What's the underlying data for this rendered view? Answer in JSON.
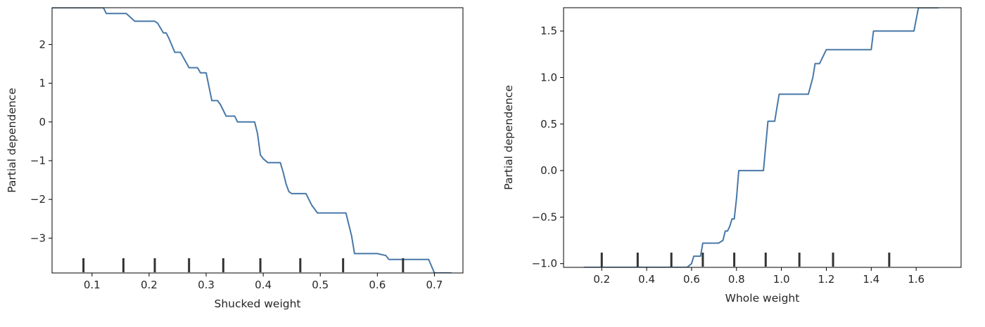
{
  "chart_data": [
    {
      "type": "line",
      "xlabel": "Shucked weight",
      "ylabel": "Partial dependence",
      "xlim": [
        0.03,
        0.75
      ],
      "ylim": [
        -3.9,
        2.95
      ],
      "xticks": [
        0.1,
        0.2,
        0.3,
        0.4,
        0.5,
        0.6,
        0.7
      ],
      "xtick_labels": [
        "0.1",
        "0.2",
        "0.3",
        "0.4",
        "0.5",
        "0.6",
        "0.7"
      ],
      "yticks": [
        2,
        1,
        0,
        -1,
        -2,
        -3
      ],
      "ytick_labels": [
        "2",
        "1",
        "0",
        "−1",
        "−2",
        "−3"
      ],
      "deciles": [
        0.085,
        0.155,
        0.21,
        0.27,
        0.33,
        0.395,
        0.465,
        0.54,
        0.645
      ],
      "line_color": "#4878a8",
      "decile_color": "#333333",
      "grid": false,
      "x": [
        0.03,
        0.12,
        0.125,
        0.14,
        0.16,
        0.175,
        0.21,
        0.215,
        0.225,
        0.23,
        0.235,
        0.245,
        0.255,
        0.27,
        0.285,
        0.29,
        0.3,
        0.31,
        0.32,
        0.325,
        0.335,
        0.35,
        0.355,
        0.385,
        0.39,
        0.395,
        0.4,
        0.408,
        0.43,
        0.435,
        0.44,
        0.445,
        0.45,
        0.475,
        0.485,
        0.495,
        0.5,
        0.545,
        0.555,
        0.56,
        0.6,
        0.615,
        0.62,
        0.645,
        0.69,
        0.7,
        0.73
      ],
      "y": [
        2.95,
        2.95,
        2.8,
        2.8,
        2.8,
        2.6,
        2.6,
        2.55,
        2.3,
        2.3,
        2.15,
        1.8,
        1.8,
        1.4,
        1.4,
        1.27,
        1.27,
        0.55,
        0.55,
        0.45,
        0.15,
        0.15,
        0.0,
        0.0,
        -0.3,
        -0.85,
        -0.95,
        -1.05,
        -1.05,
        -1.3,
        -1.6,
        -1.8,
        -1.85,
        -1.85,
        -2.15,
        -2.35,
        -2.35,
        -2.35,
        -2.95,
        -3.4,
        -3.4,
        -3.45,
        -3.55,
        -3.55,
        -3.55,
        -3.9,
        -3.9
      ]
    },
    {
      "type": "line",
      "xlabel": "Whole weight",
      "ylabel": "Partial dependence",
      "xlim": [
        0.03,
        1.8
      ],
      "ylim": [
        -1.04,
        1.75
      ],
      "xticks": [
        0.2,
        0.4,
        0.6,
        0.8,
        1.0,
        1.2,
        1.4,
        1.6
      ],
      "xtick_labels": [
        "0.2",
        "0.4",
        "0.6",
        "0.8",
        "1.0",
        "1.2",
        "1.4",
        "1.6"
      ],
      "yticks": [
        1.5,
        1.0,
        0.5,
        0.0,
        -0.5,
        -1.0
      ],
      "ytick_labels": [
        "1.5",
        "1.0",
        "0.5",
        "0.0",
        "−0.5",
        "−1.0"
      ],
      "deciles": [
        0.2,
        0.36,
        0.51,
        0.65,
        0.79,
        0.93,
        1.08,
        1.23,
        1.48
      ],
      "line_color": "#4878a8",
      "decile_color": "#333333",
      "grid": false,
      "x": [
        0.12,
        0.58,
        0.6,
        0.61,
        0.64,
        0.65,
        0.72,
        0.74,
        0.75,
        0.76,
        0.77,
        0.78,
        0.79,
        0.8,
        0.81,
        0.87,
        0.92,
        0.94,
        0.97,
        0.99,
        1.09,
        1.12,
        1.14,
        1.15,
        1.17,
        1.2,
        1.35,
        1.4,
        1.41,
        1.45,
        1.5,
        1.58,
        1.59,
        1.61,
        1.7
      ],
      "y": [
        -1.04,
        -1.04,
        -1.0,
        -0.92,
        -0.92,
        -0.78,
        -0.78,
        -0.75,
        -0.65,
        -0.65,
        -0.6,
        -0.52,
        -0.52,
        -0.3,
        0.0,
        0.0,
        0.0,
        0.53,
        0.53,
        0.82,
        0.82,
        0.82,
        1.0,
        1.15,
        1.15,
        1.3,
        1.3,
        1.3,
        1.5,
        1.5,
        1.5,
        1.5,
        1.5,
        1.75,
        1.75
      ]
    }
  ]
}
